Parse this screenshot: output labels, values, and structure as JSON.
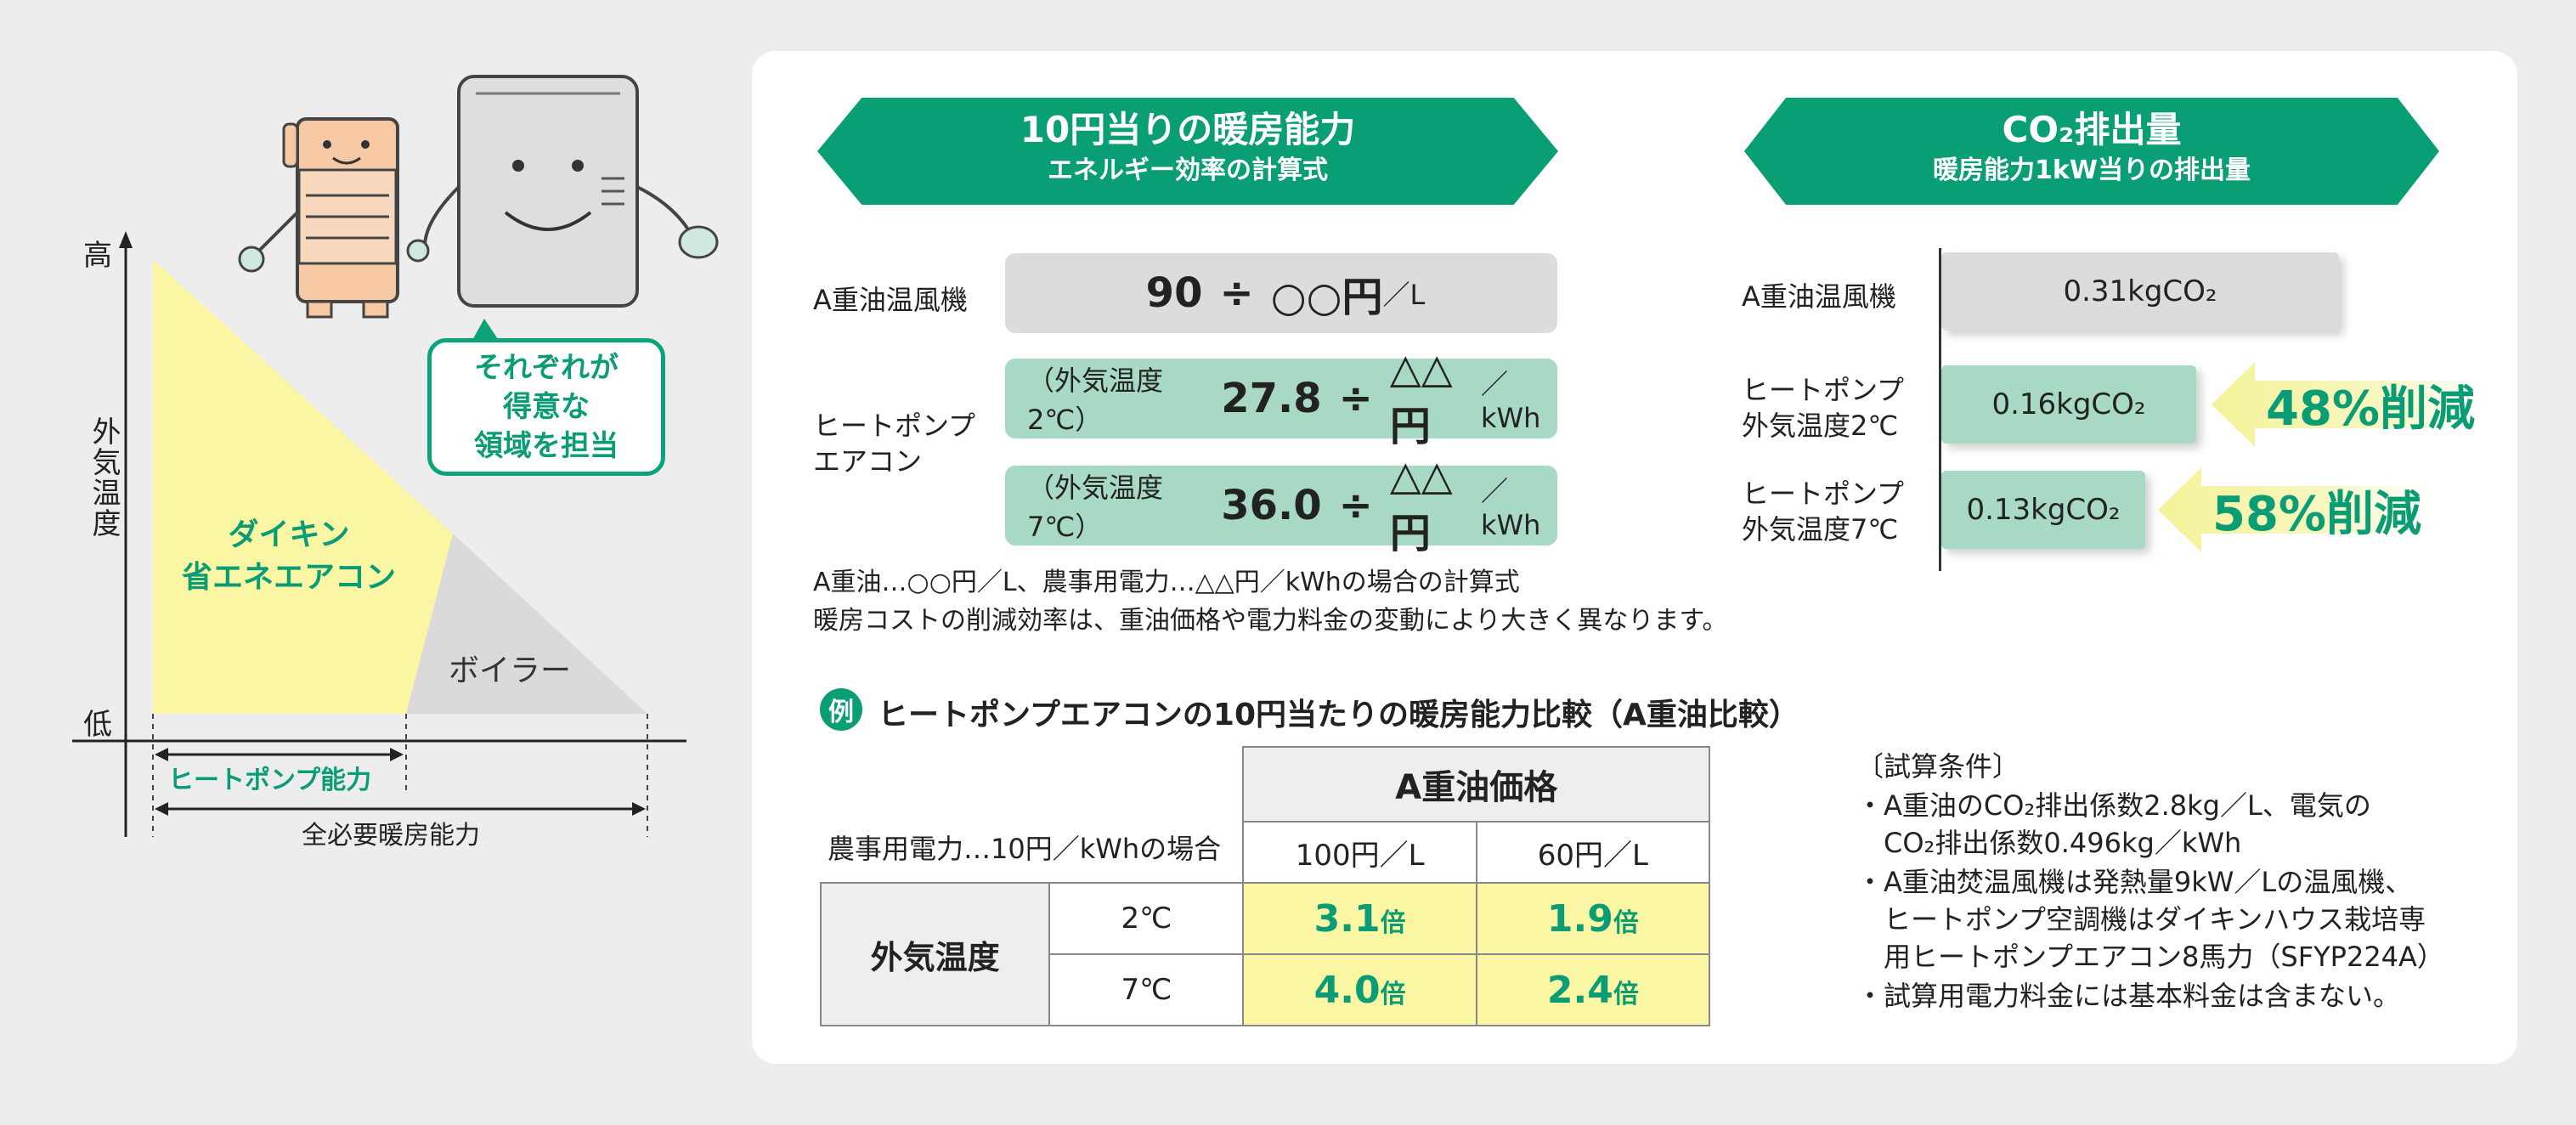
{
  "diagram": {
    "y_high": "高",
    "y_low": "低",
    "y_axis": "外気温度",
    "region_daikin": "ダイキン\n省エネエアコン",
    "region_boiler": "ボイラー",
    "bubble": "それぞれが\n得意な\n領域を担当",
    "range_heatpump": "ヒートポンプ能力",
    "range_total": "全必要暖房能力"
  },
  "left_section": {
    "banner_title": "10円当りの暖房能力",
    "banner_subtitle": "エネルギー効率の計算式",
    "row_oil_label": "A重油温風機",
    "row_hp_label": "ヒートポンプ\nエアコン",
    "oil_formula": {
      "num": "90",
      "op": "÷",
      "price": "○○円",
      "unit": "／L"
    },
    "hp_rows": [
      {
        "cond": "（外気温度2℃）",
        "num": "27.8",
        "op": "÷",
        "price": "△△円",
        "unit": "／kWh"
      },
      {
        "cond": "（外気温度7℃）",
        "num": "36.0",
        "op": "÷",
        "price": "△△円",
        "unit": "／kWh"
      }
    ],
    "note1": "A重油…○○円／L、農事用電力…△△円／kWhの場合の計算式",
    "note2": "暖房コストの削減効率は、重油価格や電力料金の変動により大きく異なります。"
  },
  "right_section": {
    "banner_title": "CO₂排出量",
    "banner_subtitle": "暖房能力1kW当りの排出量",
    "rows": [
      {
        "label": "A重油温風機",
        "value": "0.31kgCO₂",
        "reduction": ""
      },
      {
        "label": "ヒートポンプ\n外気温度2℃",
        "value": "0.16kgCO₂",
        "reduction": "48%削減"
      },
      {
        "label": "ヒートポンプ\n外気温度7℃",
        "value": "0.13kgCO₂",
        "reduction": "58%削減"
      }
    ]
  },
  "example": {
    "badge": "例",
    "title": "ヒートポンプエアコンの10円当たりの暖房能力比較（A重油比較）",
    "corner_label": "農事用電力…10円／kWhの場合",
    "group_header": "A重油価格",
    "col_headers": [
      "100円／L",
      "60円／L"
    ],
    "row_group": "外気温度",
    "rows": [
      {
        "temp": "2℃",
        "values": [
          "3.1",
          "1.9"
        ]
      },
      {
        "temp": "7℃",
        "values": [
          "4.0",
          "2.4"
        ]
      }
    ],
    "unit": "倍"
  },
  "conditions": {
    "title": "〔試算条件〕",
    "items": [
      "・A重油のCO₂排出係数2.8kg／L、電気の\n　CO₂排出係数0.496kg／kWh",
      "・A重油焚温風機は発熱量9kW／Lの温風機、\n　ヒートポンプ空調機はダイキンハウス栽培専\n　用ヒートポンプエアコン8馬力（SFYP224A）",
      "・試算用電力料金には基本料金は含まない。"
    ]
  },
  "colors": {
    "brand_green": "#0a9e75",
    "light_green": "#a7d9c5",
    "yellow": "#fbf6a4",
    "gray": "#dcdcdc"
  }
}
